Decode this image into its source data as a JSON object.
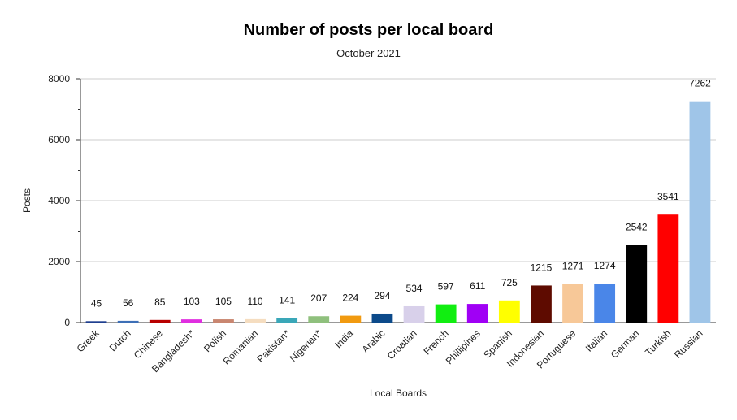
{
  "chart_data": {
    "type": "bar",
    "title": "Number of posts per local board",
    "subtitle": "October 2021",
    "xlabel": "Local Boards",
    "ylabel": "Posts",
    "ylim": [
      0,
      8000
    ],
    "yticks": [
      0,
      2000,
      4000,
      6000,
      8000
    ],
    "grid": true,
    "legend": "none",
    "categories": [
      "Greek",
      "Dutch",
      "Chinese",
      "Bangladesh*",
      "Polish",
      "Romanian",
      "Pakistan*",
      "Nigerian*",
      "India",
      "Arabic",
      "Croatian",
      "French",
      "Phillipines",
      "Spanish",
      "Indonesian",
      "Portuguese",
      "Italian",
      "German",
      "Turkish",
      "Russian"
    ],
    "values": [
      45,
      56,
      85,
      103,
      105,
      110,
      141,
      207,
      224,
      294,
      534,
      597,
      611,
      725,
      1215,
      1271,
      1274,
      2542,
      3541,
      7262
    ],
    "colors": [
      "#1f3f8f",
      "#3d6fb6",
      "#b80000",
      "#e02ee0",
      "#c98670",
      "#f5ddc0",
      "#3aa7b8",
      "#8fc07d",
      "#f19a10",
      "#0c4a8a",
      "#d8d0ea",
      "#11ee11",
      "#a000f5",
      "#ffff00",
      "#5e0b00",
      "#f7c898",
      "#4a86e8",
      "#000000",
      "#ff0000",
      "#9fc5e8"
    ]
  }
}
